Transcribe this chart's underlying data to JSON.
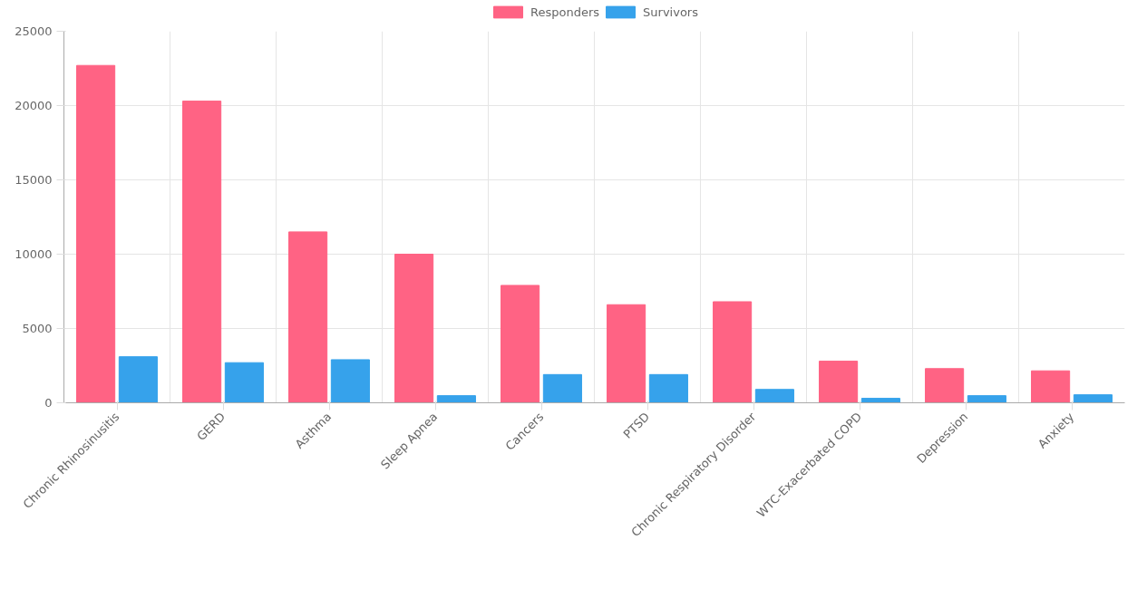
{
  "chart_data": {
    "type": "bar",
    "categories": [
      "Chronic Rhinosinusitis",
      "GERD",
      "Asthma",
      "Sleep Apnea",
      "Cancers",
      "PTSD",
      "Chronic Respiratory Disorder",
      "WTC-Exacerbated COPD",
      "Depression",
      "Anxiety"
    ],
    "series": [
      {
        "name": "Responders",
        "color": "#ff6384",
        "values": [
          22700,
          20300,
          11500,
          10000,
          7900,
          6600,
          6800,
          2800,
          2300,
          2150
        ]
      },
      {
        "name": "Survivors",
        "color": "#36a2eb",
        "values": [
          3100,
          2700,
          2900,
          480,
          1900,
          1900,
          900,
          300,
          480,
          540
        ]
      }
    ],
    "ylim": [
      0,
      25000
    ],
    "yticks": [
      0,
      5000,
      10000,
      15000,
      20000,
      25000
    ],
    "grid": true,
    "legend": "top"
  }
}
